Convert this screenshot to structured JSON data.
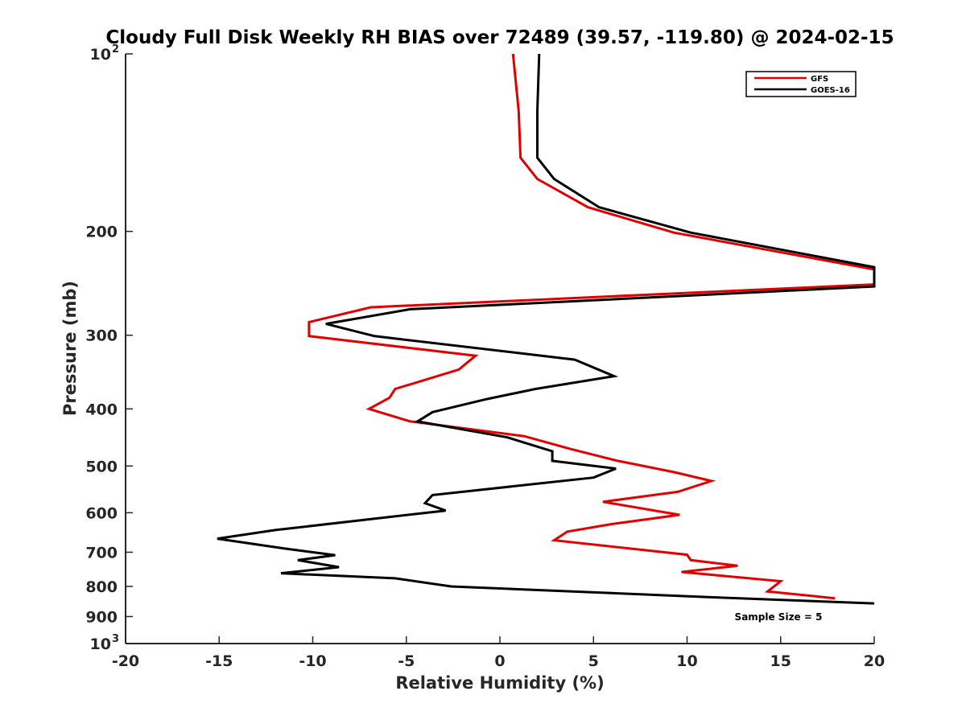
{
  "chart_data": {
    "type": "line",
    "title": "Cloudy Full Disk Weekly RH BIAS over 72489 (39.57, -119.80) @ 2024-02-15",
    "xlabel": "Relative Humidity (%)",
    "ylabel": "Pressure (mb)",
    "xlim": [
      -20,
      20
    ],
    "ylim": [
      100,
      1000
    ],
    "y_scale": "log",
    "y_reversed": true,
    "grid": false,
    "legend_position": "top-right",
    "x_ticks": [
      -20,
      -15,
      -10,
      -5,
      0,
      5,
      10,
      15,
      20
    ],
    "x_tick_labels": [
      "-20",
      "-15",
      "-10",
      "-5",
      "0",
      "5",
      "10",
      "15",
      "20"
    ],
    "y_ticks": [
      {
        "value": 100,
        "label": "10",
        "exp": "2"
      },
      {
        "value": 200,
        "label": "200"
      },
      {
        "value": 300,
        "label": "300"
      },
      {
        "value": 400,
        "label": "400"
      },
      {
        "value": 500,
        "label": "500"
      },
      {
        "value": 600,
        "label": "600"
      },
      {
        "value": 700,
        "label": "700"
      },
      {
        "value": 800,
        "label": "800"
      },
      {
        "value": 900,
        "label": "900"
      },
      {
        "value": 1000,
        "label": "10",
        "exp": "3"
      }
    ],
    "series": [
      {
        "name": "GFS",
        "color": "#e00000",
        "points": [
          [
            0.7,
            100
          ],
          [
            1.0,
            125
          ],
          [
            1.1,
            150
          ],
          [
            2.0,
            163
          ],
          [
            4.7,
            182
          ],
          [
            9.3,
            201
          ],
          [
            20.0,
            232
          ],
          [
            20.0,
            246
          ],
          [
            -6.9,
            269
          ],
          [
            -10.2,
            285
          ],
          [
            -10.2,
            301
          ],
          [
            -1.3,
            325
          ],
          [
            -2.2,
            343
          ],
          [
            -5.6,
            370
          ],
          [
            -5.9,
            383
          ],
          [
            -7.0,
            400
          ],
          [
            -4.8,
            420
          ],
          [
            1.3,
            445
          ],
          [
            3.8,
            468
          ],
          [
            6.3,
            490
          ],
          [
            9.3,
            512
          ],
          [
            11.3,
            530
          ],
          [
            9.5,
            553
          ],
          [
            5.5,
            575
          ],
          [
            9.6,
            605
          ],
          [
            6.0,
            627
          ],
          [
            3.6,
            646
          ],
          [
            2.9,
            668
          ],
          [
            10.0,
            707
          ],
          [
            10.2,
            722
          ],
          [
            12.7,
            738
          ],
          [
            9.7,
            756
          ],
          [
            15.0,
            784
          ],
          [
            14.3,
            816
          ],
          [
            17.9,
            838
          ]
        ]
      },
      {
        "name": "GOES-16",
        "color": "#000000",
        "points": [
          [
            2.1,
            100
          ],
          [
            2.0,
            125
          ],
          [
            2.0,
            150
          ],
          [
            2.9,
            163
          ],
          [
            5.3,
            182
          ],
          [
            10.2,
            201
          ],
          [
            20.0,
            230
          ],
          [
            20.0,
            248
          ],
          [
            -4.8,
            271
          ],
          [
            -9.3,
            287
          ],
          [
            -6.7,
            301
          ],
          [
            4.0,
            330
          ],
          [
            6.1,
            352
          ],
          [
            1.9,
            370
          ],
          [
            -0.7,
            385
          ],
          [
            -3.6,
            405
          ],
          [
            -4.4,
            420
          ],
          [
            0.4,
            447
          ],
          [
            2.8,
            472
          ],
          [
            2.8,
            490
          ],
          [
            6.2,
            505
          ],
          [
            5.0,
            523
          ],
          [
            -3.6,
            560
          ],
          [
            -4.0,
            578
          ],
          [
            -2.9,
            595
          ],
          [
            -12.0,
            642
          ],
          [
            -15.1,
            664
          ],
          [
            -11.5,
            690
          ],
          [
            -8.8,
            708
          ],
          [
            -10.8,
            722
          ],
          [
            -8.6,
            742
          ],
          [
            -11.7,
            760
          ],
          [
            -5.6,
            775
          ],
          [
            -2.6,
            800
          ],
          [
            11.5,
            835
          ],
          [
            20.0,
            855
          ]
        ]
      }
    ],
    "annotation": "Sample Size = 5"
  }
}
